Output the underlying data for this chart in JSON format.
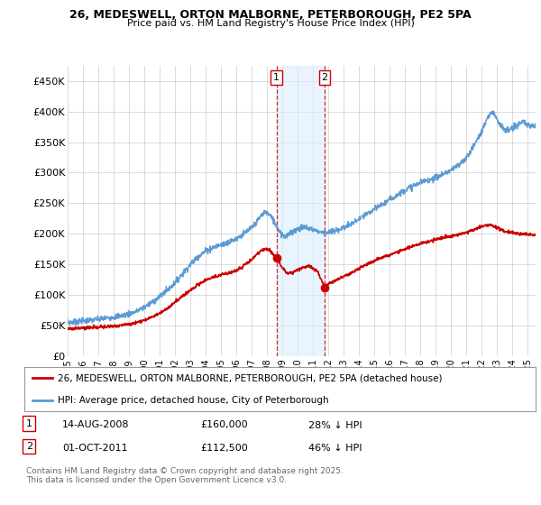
{
  "title": "26, MEDESWELL, ORTON MALBORNE, PETERBOROUGH, PE2 5PA",
  "subtitle": "Price paid vs. HM Land Registry's House Price Index (HPI)",
  "ylim": [
    0,
    475000
  ],
  "yticks": [
    0,
    50000,
    100000,
    150000,
    200000,
    250000,
    300000,
    350000,
    400000,
    450000
  ],
  "ytick_labels": [
    "£0",
    "£50K",
    "£100K",
    "£150K",
    "£200K",
    "£250K",
    "£300K",
    "£350K",
    "£400K",
    "£450K"
  ],
  "hpi_color": "#5b9bd5",
  "price_color": "#cc0000",
  "marker1_x": 2008.617,
  "marker2_x": 2011.747,
  "marker1_price": 160000,
  "marker2_price": 112500,
  "legend1": "26, MEDESWELL, ORTON MALBORNE, PETERBOROUGH, PE2 5PA (detached house)",
  "legend2": "HPI: Average price, detached house, City of Peterborough",
  "ann1_date": "14-AUG-2008",
  "ann1_price": "£160,000",
  "ann1_hpi": "28% ↓ HPI",
  "ann2_date": "01-OCT-2011",
  "ann2_price": "£112,500",
  "ann2_hpi": "46% ↓ HPI",
  "footer": "Contains HM Land Registry data © Crown copyright and database right 2025.\nThis data is licensed under the Open Government Licence v3.0.",
  "bg": "#ffffff",
  "grid_color": "#cccccc",
  "xmin": 1995.0,
  "xmax": 2025.5
}
